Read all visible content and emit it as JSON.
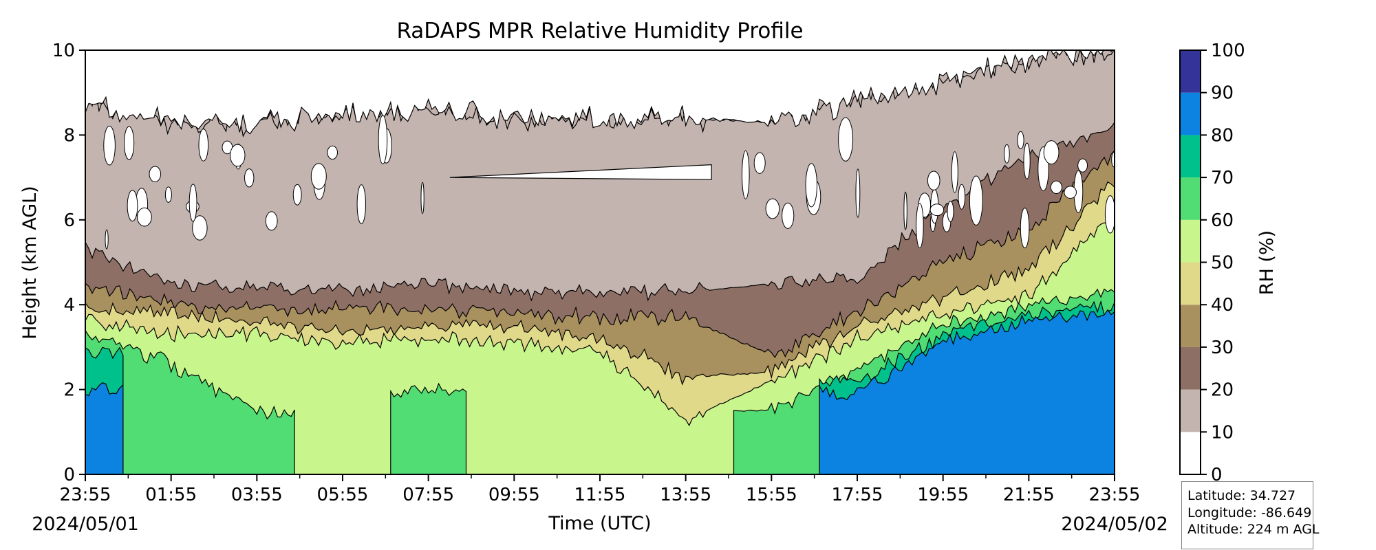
{
  "chart_data": {
    "type": "heatmap",
    "title": "RaDAPS MPR Relative Humidity Profile",
    "xlabel": "Time (UTC)",
    "ylabel": "Height (km AGL)",
    "ylim": [
      0,
      10
    ],
    "yticks": [
      "0",
      "2",
      "4",
      "6",
      "8",
      "10"
    ],
    "xticks": [
      "23:55",
      "01:55",
      "03:55",
      "05:55",
      "07:55",
      "09:55",
      "11:55",
      "13:55",
      "15:55",
      "17:55",
      "19:55",
      "21:55",
      "23:55"
    ],
    "start_date": "2024/05/01",
    "end_date": "2024/05/02",
    "colorbar": {
      "label": "RH (%)",
      "ticks": [
        "0",
        "10",
        "20",
        "30",
        "40",
        "50",
        "60",
        "70",
        "80",
        "90",
        "100"
      ],
      "levels": [
        0,
        10,
        20,
        30,
        40,
        50,
        60,
        70,
        80,
        90,
        100
      ],
      "colors": [
        "#ffffff",
        "#c3b4b0",
        "#8e6f66",
        "#a8915e",
        "#e1d98a",
        "#c8f58c",
        "#52dc74",
        "#00c08c",
        "#0c82e1",
        "#333399"
      ]
    },
    "profiles": [
      {
        "time": "23:55",
        "rh_boundaries_km": {
          "10": 8.75,
          "20": 5.3,
          "30": 4.4,
          "40": 3.9,
          "50": 3.6,
          "60": 3.3,
          "70": 2.9,
          "80": 2.0
        }
      },
      {
        "time": "01:55",
        "rh_boundaries_km": {
          "10": 8.3,
          "20": 4.5,
          "30": 4.0,
          "40": 3.8,
          "50": 3.3,
          "60": 2.6,
          "70": null,
          "80": null
        }
      },
      {
        "time": "03:55",
        "rh_boundaries_km": {
          "10": 8.3,
          "20": 4.4,
          "30": 3.9,
          "40": 3.6,
          "50": 3.3,
          "60": 1.5,
          "70": null,
          "80": null
        }
      },
      {
        "time": "05:55",
        "rh_boundaries_km": {
          "10": 8.5,
          "20": 4.3,
          "30": 3.9,
          "40": 3.4,
          "50": 3.1,
          "60": null,
          "70": null,
          "80": null
        }
      },
      {
        "time": "07:55",
        "rh_boundaries_km": {
          "10": 8.6,
          "20": 4.5,
          "30": 3.9,
          "40": 3.5,
          "50": 3.2,
          "60": 2.0,
          "70": null,
          "80": null
        }
      },
      {
        "time": "09:55",
        "rh_boundaries_km": {
          "10": 8.4,
          "20": 4.3,
          "30": 3.8,
          "40": 3.5,
          "50": 3.1,
          "60": null,
          "70": null,
          "80": null
        }
      },
      {
        "time": "11:55",
        "rh_boundaries_km": {
          "10": 8.4,
          "20": 4.3,
          "30": 3.7,
          "40": 3.2,
          "50": 2.9,
          "60": null,
          "70": null,
          "80": null
        }
      },
      {
        "time": "13:55",
        "rh_boundaries_km": {
          "10": 8.4,
          "20": 4.3,
          "30": 3.7,
          "40": 2.3,
          "50": 1.3,
          "60": null,
          "70": null,
          "80": null
        }
      },
      {
        "time": "15:55",
        "rh_boundaries_km": {
          "10": 8.3,
          "20": 4.5,
          "30": 2.8,
          "40": 2.4,
          "50": 2.2,
          "60": 1.5,
          "70": null,
          "80": null
        }
      },
      {
        "time": "17:55",
        "rh_boundaries_km": {
          "10": 8.8,
          "20": 4.6,
          "30": 3.8,
          "40": 3.5,
          "50": 3.2,
          "60": 2.5,
          "70": 2.2,
          "80": 1.9
        }
      },
      {
        "time": "19:55",
        "rh_boundaries_km": {
          "10": 9.3,
          "20": 6.3,
          "30": 5.0,
          "40": 4.2,
          "50": 3.8,
          "60": 3.5,
          "70": 3.3,
          "80": 3.1
        }
      },
      {
        "time": "21:55",
        "rh_boundaries_km": {
          "10": 9.8,
          "20": 7.5,
          "30": 5.8,
          "40": 4.8,
          "50": 4.2,
          "60": 4.0,
          "70": 3.8,
          "80": 3.6
        }
      },
      {
        "time": "23:55",
        "rh_boundaries_km": {
          "10": 10.0,
          "20": 8.2,
          "30": 7.6,
          "40": 6.9,
          "50": 6.2,
          "60": 4.3,
          "70": 4.0,
          "80": 3.8
        }
      }
    ]
  },
  "station": {
    "latitude": "Latitude: 34.727",
    "longitude": "Longitude: -86.649",
    "altitude": "Altitude: 224 m AGL"
  }
}
